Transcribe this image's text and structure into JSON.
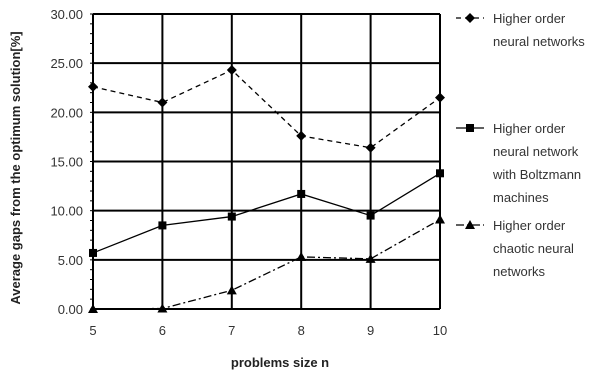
{
  "chart_data": {
    "type": "line",
    "xlabel": "problems size n",
    "ylabel": "Average gaps from the optimum solution[%]",
    "x": [
      5,
      6,
      7,
      8,
      9,
      10
    ],
    "ylim": [
      0,
      30
    ],
    "yticks": [
      "0.00",
      "5.00",
      "10.00",
      "15.00",
      "20.00",
      "25.00",
      "30.00"
    ],
    "xticks": [
      "5",
      "6",
      "7",
      "8",
      "9",
      "10"
    ],
    "grid": true,
    "legend_position": "right",
    "series": [
      {
        "name": [
          "Higher order",
          "neural networks"
        ],
        "marker": "diamond",
        "dash": "dashed",
        "color": "#000000",
        "values": [
          22.6,
          21.0,
          24.3,
          17.6,
          16.4,
          21.5
        ]
      },
      {
        "name": [
          "Higher order",
          "neural network",
          "with Boltzmann",
          "machines"
        ],
        "marker": "square",
        "dash": "solid",
        "color": "#000000",
        "values": [
          5.7,
          8.5,
          9.4,
          11.7,
          9.5,
          13.8
        ]
      },
      {
        "name": [
          "Higher order",
          "chaotic neural",
          "networks"
        ],
        "marker": "triangle",
        "dash": "dashdot",
        "color": "#000000",
        "values": [
          0.0,
          0.05,
          1.9,
          5.3,
          5.1,
          9.1
        ]
      }
    ]
  }
}
